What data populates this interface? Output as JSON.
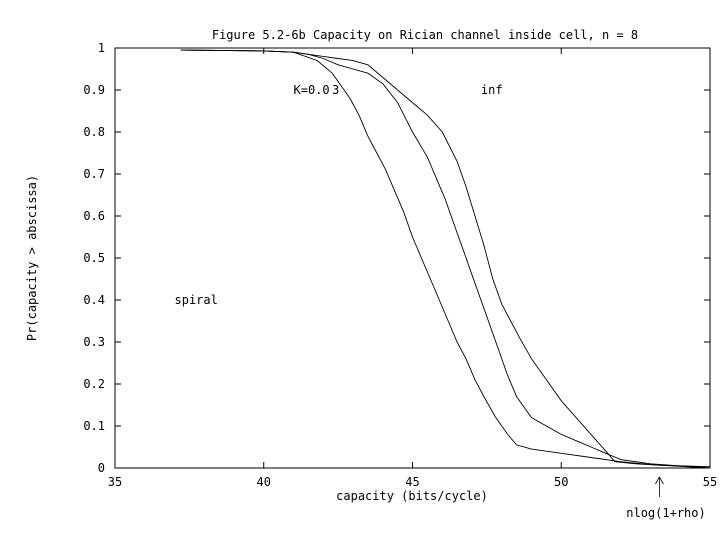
{
  "chart_data": {
    "type": "line",
    "title": "Figure 5.2-6b  Capacity on Rician channel inside cell, n = 8",
    "xlabel": "capacity (bits/cycle)",
    "ylabel": "Pr(capacity > abscissa)",
    "xlim": [
      35,
      55
    ],
    "ylim": [
      0,
      1
    ],
    "xticks": [
      35,
      40,
      45,
      50,
      55
    ],
    "yticks": [
      0,
      0.1,
      0.2,
      0.3,
      0.4,
      0.5,
      0.6,
      0.7,
      0.8,
      0.9,
      1
    ],
    "xtick_labels": [
      "35",
      "40",
      "45",
      "50",
      "55"
    ],
    "ytick_labels": [
      "0",
      "0.1",
      "0.2",
      "0.3",
      "0.4",
      "0.5",
      "0.6",
      "0.7",
      "0.8",
      "0.9",
      "1"
    ],
    "grid": false,
    "annotations": [
      {
        "id": "k-label",
        "text": "K=0.0",
        "x": 41.0,
        "y": 0.9
      },
      {
        "id": "three-label",
        "text": "3",
        "x": 42.3,
        "y": 0.9
      },
      {
        "id": "inf-label",
        "text": "inf",
        "x": 47.3,
        "y": 0.9
      },
      {
        "id": "spiral-label",
        "text": "spiral",
        "x": 37.0,
        "y": 0.4
      }
    ],
    "marker": {
      "text": "nlog(1+rho)",
      "x": 53.3
    },
    "series": [
      {
        "name": "K=0.0",
        "x": [
          37.2,
          40.0,
          41.0,
          41.8,
          42.3,
          42.6,
          42.9,
          43.2,
          43.5,
          43.8,
          44.1,
          44.4,
          44.7,
          45.0,
          45.3,
          45.6,
          45.9,
          46.2,
          46.5,
          46.8,
          47.1,
          47.4,
          47.8,
          48.2,
          48.5,
          49.0,
          50.0,
          51.0,
          52.0,
          53.0,
          55.0
        ],
        "y": [
          0.995,
          0.993,
          0.99,
          0.97,
          0.94,
          0.91,
          0.88,
          0.84,
          0.79,
          0.75,
          0.71,
          0.66,
          0.61,
          0.55,
          0.5,
          0.45,
          0.4,
          0.35,
          0.3,
          0.26,
          0.21,
          0.17,
          0.12,
          0.08,
          0.055,
          0.045,
          0.035,
          0.025,
          0.015,
          0.008,
          0.0
        ]
      },
      {
        "name": "3",
        "x": [
          37.2,
          40.0,
          41.0,
          41.5,
          42.0,
          42.5,
          43.0,
          43.5,
          44.0,
          44.5,
          45.0,
          45.5,
          45.8,
          46.1,
          46.4,
          46.7,
          47.0,
          47.3,
          47.6,
          47.9,
          48.2,
          48.5,
          49.0,
          49.5,
          50.0,
          50.5,
          51.0,
          51.5,
          52.0,
          53.0,
          55.0
        ],
        "y": [
          0.995,
          0.993,
          0.99,
          0.985,
          0.975,
          0.96,
          0.95,
          0.94,
          0.915,
          0.87,
          0.8,
          0.74,
          0.69,
          0.64,
          0.58,
          0.52,
          0.46,
          0.4,
          0.34,
          0.28,
          0.22,
          0.17,
          0.12,
          0.1,
          0.08,
          0.065,
          0.05,
          0.035,
          0.02,
          0.01,
          0.0
        ]
      },
      {
        "name": "inf",
        "x": [
          37.2,
          40.0,
          41.0,
          41.5,
          42.0,
          42.5,
          43.0,
          43.5,
          44.0,
          44.5,
          45.0,
          45.5,
          46.0,
          46.5,
          46.8,
          47.1,
          47.4,
          47.7,
          48.0,
          48.3,
          48.6,
          49.0,
          49.5,
          50.0,
          50.5,
          51.0,
          51.5,
          51.8,
          52.5,
          53.5,
          55.0
        ],
        "y": [
          0.995,
          0.993,
          0.99,
          0.985,
          0.98,
          0.975,
          0.97,
          0.96,
          0.93,
          0.9,
          0.87,
          0.84,
          0.8,
          0.73,
          0.67,
          0.6,
          0.53,
          0.45,
          0.39,
          0.35,
          0.31,
          0.26,
          0.21,
          0.16,
          0.12,
          0.08,
          0.04,
          0.015,
          0.01,
          0.006,
          0.003
        ]
      }
    ]
  }
}
